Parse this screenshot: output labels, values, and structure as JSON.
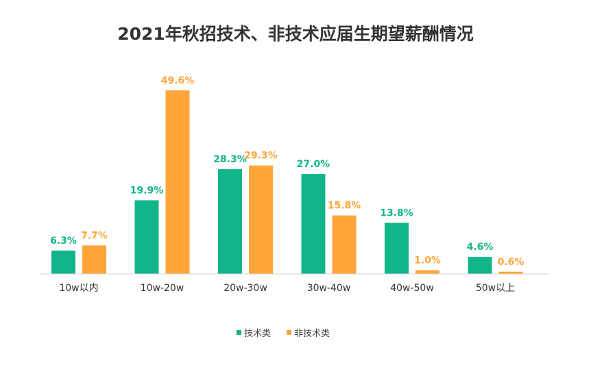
{
  "chart_data": {
    "type": "bar",
    "title": "2021年秋招技术、非技术应届生期望薪酬情况",
    "categories": [
      "10w以内",
      "10w-20w",
      "20w-30w",
      "30w-40w",
      "40w-50w",
      "50w以上"
    ],
    "series": [
      {
        "name": "技术类",
        "color": "#12b58a",
        "values": [
          6.3,
          19.9,
          28.3,
          27.0,
          13.8,
          4.6
        ],
        "labels": [
          "6.3%",
          "19.9%",
          "28.3%",
          "27.0%",
          "13.8%",
          "4.6%"
        ]
      },
      {
        "name": "非技术类",
        "color": "#ffa53a",
        "values": [
          7.7,
          49.6,
          29.3,
          15.8,
          1.0,
          0.6
        ],
        "labels": [
          "7.7%",
          "49.6%",
          "29.3%",
          "15.8%",
          "1.0%",
          "0.6%"
        ]
      }
    ],
    "ylim": [
      0,
      50
    ],
    "legend_position": "bottom-center",
    "grid": false
  }
}
